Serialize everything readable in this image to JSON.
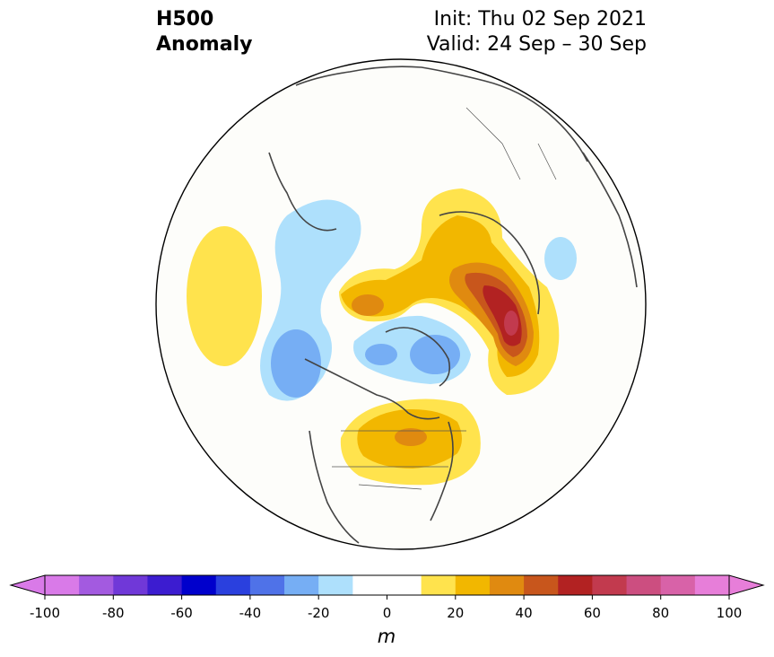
{
  "title": {
    "left_line1": "H500",
    "left_line2": "Anomaly",
    "right_line1": "Init: Thu 02 Sep 2021",
    "right_line2": "Valid: 24 Sep – 30 Sep"
  },
  "colorbar": {
    "unit": "m",
    "ticks": [
      "-100",
      "-80",
      "-60",
      "-40",
      "-20",
      "0",
      "20",
      "40",
      "60",
      "80",
      "100"
    ],
    "under_color": "#d97ae8",
    "over_color": "#e77ed9",
    "colors": [
      "#d97ae8",
      "#a35ae0",
      "#7038d8",
      "#3c1cd0",
      "#0000cc",
      "#2a40de",
      "#4f72e8",
      "#76aef4",
      "#aee0fc",
      "#ffffff",
      "#ffffff",
      "#ffe34d",
      "#f2b700",
      "#e08a10",
      "#c8561c",
      "#b22222",
      "#c23a4e",
      "#cc4e80",
      "#d862a8",
      "#e77ed9"
    ]
  },
  "anomaly_palette": {
    "neg_10": "#aee0fc",
    "neg_20": "#76aef4",
    "pos_10": "#ffe34d",
    "pos_20": "#f2b700",
    "pos_30": "#e08a10",
    "pos_40": "#c8561c",
    "pos_50": "#b22222",
    "pos_60": "#c23a4e"
  }
}
